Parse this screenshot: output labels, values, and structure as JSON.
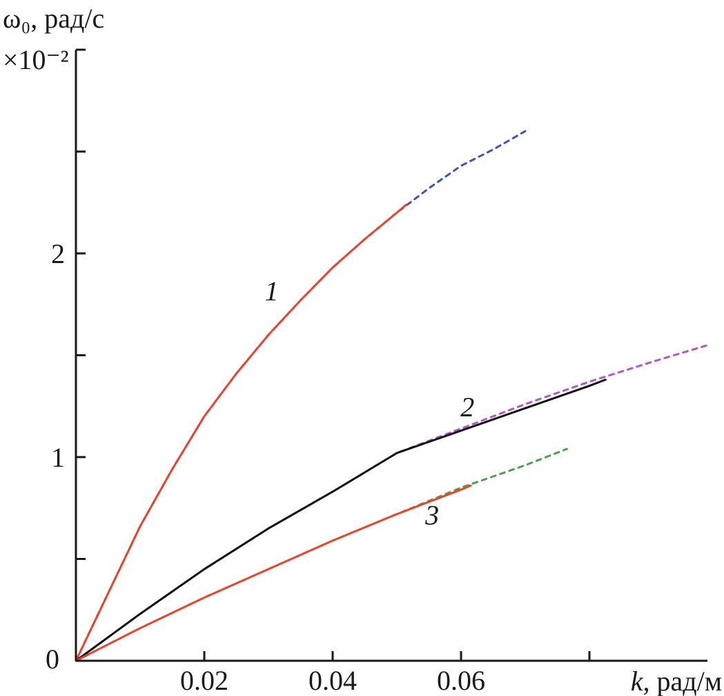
{
  "chart_data": {
    "type": "line",
    "ylabel": "ω₀, рад/с",
    "y_multiplier": "×10⁻²",
    "xlabel_var": "k",
    "xlabel_unit": ", рад/м",
    "xlim": [
      0,
      0.1
    ],
    "ylim": [
      0,
      3
    ],
    "x_ticks": [
      {
        "value": 0.02,
        "label": "0.02"
      },
      {
        "value": 0.04,
        "label": "0.04"
      },
      {
        "value": 0.06,
        "label": "0.06"
      },
      {
        "value": 0.08,
        "label": ""
      }
    ],
    "y_ticks": [
      {
        "value": 0,
        "label": "0"
      },
      {
        "value": 0.5,
        "label": ""
      },
      {
        "value": 1,
        "label": "1"
      },
      {
        "value": 1.5,
        "label": ""
      },
      {
        "value": 2,
        "label": "2"
      },
      {
        "value": 2.5,
        "label": ""
      }
    ],
    "origin_label": "0",
    "grid": false,
    "series": [
      {
        "label": "1",
        "style": "solid",
        "color": "#e8442e",
        "x": [
          0,
          0.005,
          0.01,
          0.015,
          0.02,
          0.025,
          0.03,
          0.035,
          0.04,
          0.045,
          0.05,
          0.0515
        ],
        "y": [
          0,
          0.33,
          0.66,
          0.94,
          1.2,
          1.41,
          1.6,
          1.77,
          1.93,
          2.07,
          2.2,
          2.24
        ]
      },
      {
        "label": "",
        "style": "dashed",
        "color": "#3a55b5",
        "x": [
          0,
          0.005,
          0.01,
          0.015,
          0.02,
          0.025,
          0.03,
          0.035,
          0.04,
          0.045,
          0.05,
          0.055,
          0.06,
          0.065,
          0.07
        ],
        "y": [
          0,
          0.33,
          0.66,
          0.94,
          1.2,
          1.41,
          1.6,
          1.77,
          1.93,
          2.07,
          2.2,
          2.32,
          2.43,
          2.51,
          2.6
        ]
      },
      {
        "label": "2",
        "style": "solid",
        "color": "#111111",
        "x": [
          0,
          0.01,
          0.02,
          0.03,
          0.04,
          0.05,
          0.06,
          0.07,
          0.08,
          0.0825
        ],
        "y": [
          0,
          0.23,
          0.45,
          0.65,
          0.83,
          1.02,
          1.13,
          1.24,
          1.35,
          1.38
        ]
      },
      {
        "label": "",
        "style": "dashed",
        "color": "#b455c8",
        "x": [
          0,
          0.01,
          0.02,
          0.03,
          0.04,
          0.05,
          0.06,
          0.07,
          0.08,
          0.09,
          0.0985
        ],
        "y": [
          0,
          0.23,
          0.45,
          0.65,
          0.83,
          1.02,
          1.14,
          1.26,
          1.37,
          1.47,
          1.55
        ]
      },
      {
        "label": "3",
        "style": "solid",
        "color": "#e8442e",
        "x": [
          0,
          0.01,
          0.02,
          0.03,
          0.04,
          0.05,
          0.06,
          0.0615
        ],
        "y": [
          0,
          0.16,
          0.31,
          0.45,
          0.59,
          0.72,
          0.84,
          0.86
        ]
      },
      {
        "label": "",
        "style": "dashed",
        "color": "#4ea04e",
        "x": [
          0,
          0.01,
          0.02,
          0.03,
          0.04,
          0.05,
          0.06,
          0.07,
          0.0765
        ],
        "y": [
          0,
          0.16,
          0.31,
          0.45,
          0.59,
          0.72,
          0.85,
          0.96,
          1.04
        ]
      }
    ],
    "curve_labels": [
      {
        "text": "1",
        "x": 0.0305,
        "y": 1.77
      },
      {
        "text": "2",
        "x": 0.061,
        "y": 1.2
      },
      {
        "text": "3",
        "x": 0.0555,
        "y": 0.67
      }
    ]
  }
}
